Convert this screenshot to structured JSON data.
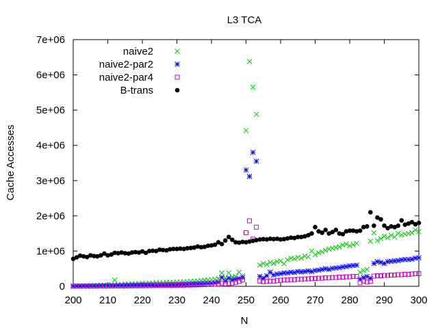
{
  "chart_data": {
    "type": "scatter",
    "title": "L3 TCA",
    "xlabel": "N",
    "ylabel": "Cache Accesses",
    "xlim": [
      200,
      300
    ],
    "ylim": [
      0,
      7000000
    ],
    "xticks": [
      "200",
      "210",
      "220",
      "230",
      "240",
      "250",
      "260",
      "270",
      "280",
      "290",
      "300"
    ],
    "yticks": [
      "0",
      "1e+06",
      "2e+06",
      "3e+06",
      "4e+06",
      "5e+06",
      "6e+06",
      "7e+06"
    ],
    "grid": false,
    "legend_position": "top-left",
    "x": [
      200,
      201,
      202,
      203,
      204,
      205,
      206,
      207,
      208,
      209,
      210,
      211,
      212,
      213,
      214,
      215,
      216,
      217,
      218,
      219,
      220,
      221,
      222,
      223,
      224,
      225,
      226,
      227,
      228,
      229,
      230,
      231,
      232,
      233,
      234,
      235,
      236,
      237,
      238,
      239,
      240,
      241,
      242,
      243,
      244,
      245,
      246,
      247,
      248,
      249,
      250,
      251,
      252,
      253,
      254,
      255,
      256,
      257,
      258,
      259,
      260,
      261,
      262,
      263,
      264,
      265,
      266,
      267,
      268,
      269,
      270,
      271,
      272,
      273,
      274,
      275,
      276,
      277,
      278,
      279,
      280,
      281,
      282,
      283,
      284,
      285,
      286,
      287,
      288,
      289,
      290,
      291,
      292,
      293,
      294,
      295,
      296,
      297,
      298,
      299,
      300
    ],
    "series": [
      {
        "name": "naive2",
        "marker": "x",
        "color": "#00cc00",
        "values": [
          5000,
          10000,
          10000,
          15000,
          15000,
          20000,
          20000,
          25000,
          30000,
          30000,
          35000,
          40000,
          180000,
          50000,
          50000,
          60000,
          60000,
          70000,
          70000,
          75000,
          80000,
          80000,
          85000,
          90000,
          100000,
          95000,
          100000,
          105000,
          110000,
          110000,
          120000,
          120000,
          125000,
          130000,
          140000,
          140000,
          150000,
          160000,
          170000,
          180000,
          190000,
          200000,
          220000,
          380000,
          240000,
          380000,
          260000,
          280000,
          400000,
          300000,
          4420000,
          6380000,
          5650000,
          4880000,
          600000,
          650000,
          620000,
          680000,
          650000,
          700000,
          720000,
          640000,
          750000,
          800000,
          780000,
          820000,
          800000,
          860000,
          840000,
          1000000,
          900000,
          950000,
          980000,
          1020000,
          1060000,
          1080000,
          1100000,
          1120000,
          1170000,
          1200000,
          1150000,
          1180000,
          1220000,
          400000,
          450000,
          480000,
          1280000,
          1520000,
          1300000,
          1350000,
          1420000,
          1380000,
          1450000,
          1400000,
          1500000,
          1460000,
          1480000,
          1500000,
          1520000,
          1600000,
          1550000
        ]
      },
      {
        "name": "naive2-par2",
        "marker": "star",
        "color": "#0000ff",
        "values": [
          5000,
          8000,
          8000,
          10000,
          10000,
          12000,
          12000,
          15000,
          15000,
          18000,
          18000,
          20000,
          20000,
          22000,
          22000,
          25000,
          28000,
          28000,
          30000,
          30000,
          32000,
          35000,
          35000,
          38000,
          40000,
          40000,
          42000,
          45000,
          48000,
          50000,
          52000,
          55000,
          58000,
          60000,
          65000,
          68000,
          70000,
          75000,
          80000,
          85000,
          90000,
          100000,
          120000,
          250000,
          150000,
          230000,
          180000,
          200000,
          220000,
          250000,
          3300000,
          3120000,
          3800000,
          3550000,
          280000,
          230000,
          300000,
          400000,
          320000,
          350000,
          360000,
          380000,
          380000,
          400000,
          390000,
          420000,
          410000,
          420000,
          440000,
          420000,
          450000,
          460000,
          480000,
          500000,
          480000,
          510000,
          520000,
          530000,
          550000,
          560000,
          580000,
          590000,
          600000,
          200000,
          250000,
          280000,
          220000,
          650000,
          700000,
          680000,
          650000,
          700000,
          710000,
          720000,
          730000,
          750000,
          760000,
          760000,
          770000,
          800000,
          810000
        ]
      },
      {
        "name": "naive2-par4",
        "marker": "square",
        "color": "#cc00cc",
        "values": [
          3000,
          4000,
          4000,
          5000,
          5000,
          6000,
          6000,
          7000,
          7000,
          8000,
          8000,
          9000,
          9000,
          10000,
          11000,
          12000,
          12000,
          13000,
          14000,
          15000,
          16000,
          17000,
          18000,
          19000,
          20000,
          21000,
          22000,
          24000,
          25000,
          26000,
          28000,
          30000,
          32000,
          35000,
          38000,
          40000,
          42000,
          45000,
          48000,
          52000,
          55000,
          60000,
          65000,
          90000,
          70000,
          80000,
          90000,
          110000,
          140000,
          180000,
          1520000,
          1860000,
          1340000,
          1680000,
          150000,
          130000,
          140000,
          150000,
          150000,
          160000,
          170000,
          180000,
          180000,
          190000,
          190000,
          200000,
          200000,
          210000,
          210000,
          220000,
          220000,
          230000,
          230000,
          240000,
          240000,
          250000,
          250000,
          260000,
          260000,
          270000,
          270000,
          280000,
          280000,
          100000,
          150000,
          120000,
          140000,
          290000,
          300000,
          300000,
          310000,
          310000,
          320000,
          320000,
          330000,
          330000,
          340000,
          340000,
          350000,
          360000,
          360000
        ]
      },
      {
        "name": "B-trans",
        "marker": "dot",
        "color": "#000000",
        "values": [
          780000,
          820000,
          870000,
          850000,
          830000,
          880000,
          860000,
          850000,
          880000,
          930000,
          880000,
          900000,
          950000,
          940000,
          960000,
          940000,
          930000,
          960000,
          970000,
          960000,
          990000,
          950000,
          1000000,
          1010000,
          1000000,
          1040000,
          1030000,
          1020000,
          1050000,
          1060000,
          1060000,
          1070000,
          1060000,
          1080000,
          1090000,
          1100000,
          1130000,
          1110000,
          1120000,
          1150000,
          1160000,
          1180000,
          1250000,
          1200000,
          1300000,
          1400000,
          1320000,
          1250000,
          1240000,
          1260000,
          1250000,
          1270000,
          1290000,
          1310000,
          1330000,
          1340000,
          1330000,
          1350000,
          1340000,
          1350000,
          1330000,
          1340000,
          1360000,
          1380000,
          1370000,
          1400000,
          1400000,
          1420000,
          1450000,
          1500000,
          1680000,
          1560000,
          1520000,
          1600000,
          1500000,
          1540000,
          1600000,
          1500000,
          1480000,
          1560000,
          1580000,
          1580000,
          1560000,
          1580000,
          1680000,
          1700000,
          2100000,
          1720000,
          1950000,
          1900000,
          1720000,
          1650000,
          1700000,
          1680000,
          1720000,
          1870000,
          1750000,
          1780000,
          1820000,
          1760000,
          1800000
        ]
      }
    ]
  }
}
